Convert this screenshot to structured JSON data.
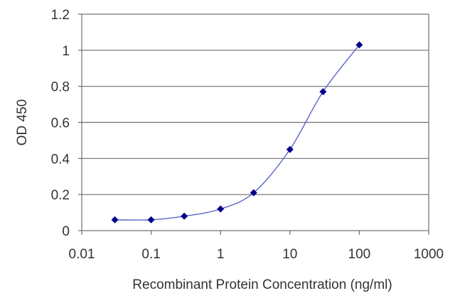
{
  "chart_data": {
    "type": "line",
    "title": "",
    "xlabel": "Recombinant Protein Concentration (ng/ml)",
    "ylabel": "OD 450",
    "x_scale": "log",
    "xlim": [
      0.01,
      1000
    ],
    "ylim": [
      0,
      1.2
    ],
    "x_ticks": [
      0.01,
      0.1,
      1,
      10,
      100,
      1000
    ],
    "x_tick_labels": [
      "0.01",
      "0.1",
      "1",
      "10",
      "100",
      "1000"
    ],
    "y_ticks": [
      0,
      0.2,
      0.4,
      0.6,
      0.8,
      1,
      1.2
    ],
    "y_tick_labels": [
      "0",
      "0.2",
      "0.4",
      "0.6",
      "0.8",
      "1",
      "1.2"
    ],
    "grid": "horizontal",
    "legend": "none",
    "series": [
      {
        "x": [
          0.03,
          0.1,
          0.3,
          1,
          3,
          10,
          30,
          100
        ],
        "y": [
          0.06,
          0.06,
          0.08,
          0.12,
          0.21,
          0.45,
          0.77,
          1.03
        ],
        "color": "#00008b",
        "line_color": "#5a64c8"
      }
    ]
  }
}
